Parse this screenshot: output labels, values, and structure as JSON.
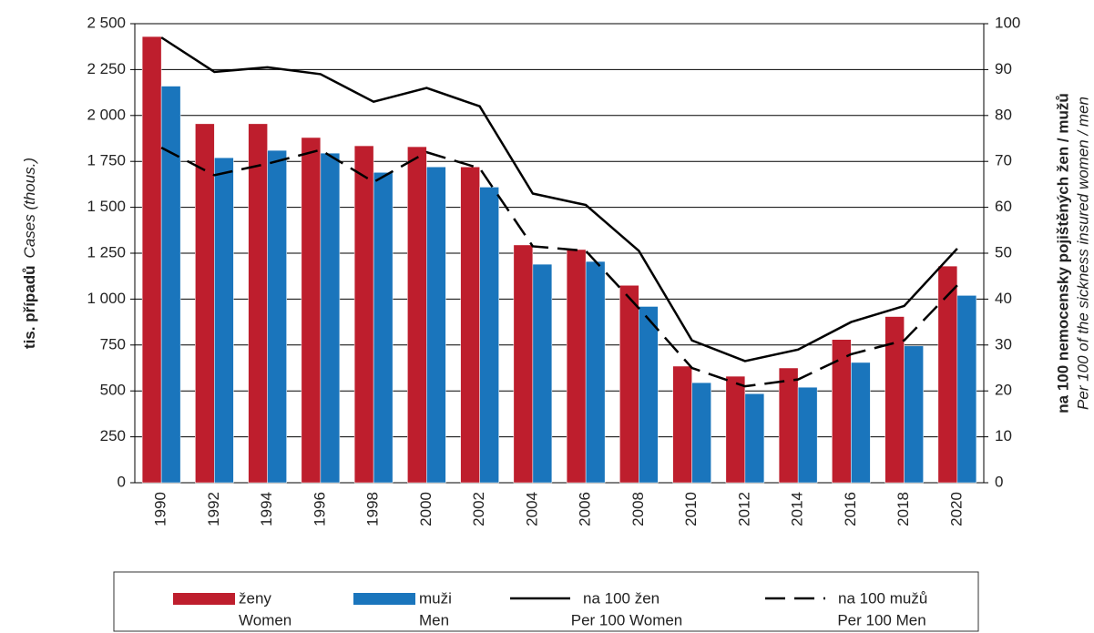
{
  "chart_data": {
    "type": "bar",
    "y_label": "tis. případů",
    "y_label_en": "Cases (thous.)",
    "y2_label": "na 100 nemocensky pojištěných žen / mužů",
    "y2_label_en": "Per 100 of the sickness insured women / men",
    "categories": [
      "1990",
      "1992",
      "1994",
      "1996",
      "1998",
      "2000",
      "2002",
      "2004",
      "2006",
      "2008",
      "2010",
      "2012",
      "2014",
      "2016",
      "2018",
      "2020"
    ],
    "series": [
      {
        "name": "ženy",
        "name_en": "Women",
        "type": "bar",
        "color": "#be1e2d",
        "values": [
          2430,
          1955,
          1955,
          1880,
          1835,
          1830,
          1720,
          1295,
          1270,
          1075,
          635,
          580,
          625,
          780,
          905,
          1180
        ]
      },
      {
        "name": "muži",
        "name_en": "Men",
        "type": "bar",
        "color": "#1a75bc",
        "values": [
          2160,
          1770,
          1810,
          1795,
          1690,
          1720,
          1610,
          1190,
          1205,
          960,
          545,
          485,
          520,
          655,
          745,
          1020
        ]
      },
      {
        "name": "na 100 žen",
        "name_en": "Per 100 Women",
        "type": "line",
        "axis": "y2",
        "color": "#000000",
        "dash": false,
        "values": [
          97,
          89.5,
          90.5,
          89,
          83,
          86,
          82,
          63,
          60.5,
          50.5,
          31,
          26.5,
          29,
          35,
          38.5,
          51
        ]
      },
      {
        "name": "na 100 mužů",
        "name_en": "Per 100 Men",
        "type": "line",
        "axis": "y2",
        "color": "#000000",
        "dash": true,
        "values": [
          73,
          67,
          69.5,
          72.5,
          65.5,
          72,
          68.5,
          51.5,
          50.5,
          38,
          25,
          21,
          22.5,
          28,
          31,
          43
        ]
      }
    ],
    "ylim": [
      0,
      2500
    ],
    "yticks": [
      0,
      250,
      500,
      750,
      {
        "value": 1000,
        "label": "1 000"
      },
      {
        "value": 1250,
        "label": "1 250"
      },
      {
        "value": 1500,
        "label": "1 500"
      },
      {
        "value": 1750,
        "label": "1 750"
      },
      {
        "value": 2000,
        "label": "2 000"
      },
      {
        "value": 2250,
        "label": "2 250"
      },
      {
        "value": 2500,
        "label": "2 500"
      }
    ],
    "y2lim": [
      0,
      100
    ],
    "y2ticks": [
      0,
      10,
      20,
      30,
      40,
      50,
      60,
      70,
      80,
      90,
      100
    ],
    "grid": true
  }
}
